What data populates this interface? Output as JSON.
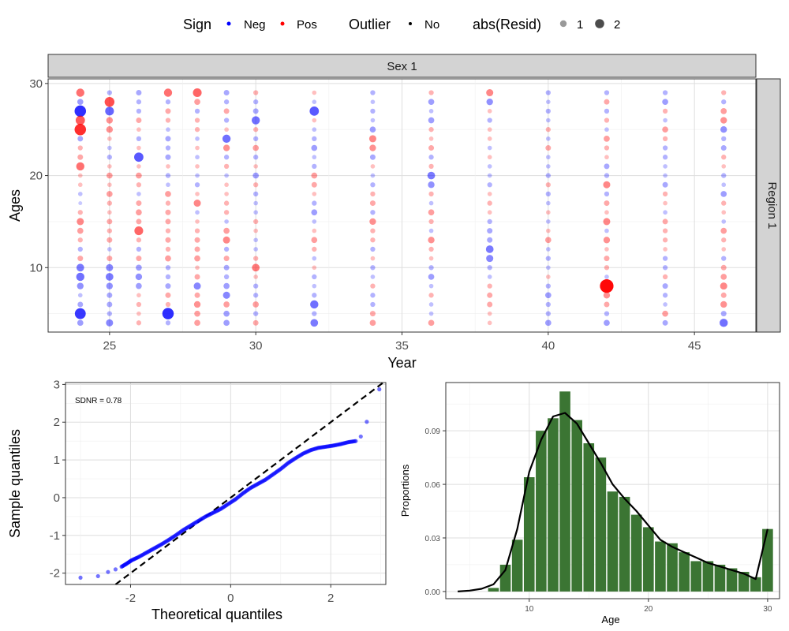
{
  "legend": {
    "sign_title": "Sign",
    "sign_neg": "Neg",
    "sign_pos": "Pos",
    "outlier_title": "Outlier",
    "outlier_no": "No",
    "resid_title": "abs(Resid)",
    "resid_small": "1",
    "resid_large": "2"
  },
  "colors": {
    "neg": "#0000ff",
    "pos": "#ff0000",
    "bar": "#3b7533",
    "strip": "#d3d3d3"
  },
  "chart_data": [
    {
      "type": "scatter",
      "strip_top": "Sex 1",
      "strip_right": "Region 1",
      "xlabel": "Year",
      "ylabel": "Ages",
      "xlim": [
        22.9,
        47.1
      ],
      "ylim": [
        3,
        30.5
      ],
      "xticks": [
        25,
        30,
        35,
        40,
        45
      ],
      "yticks": [
        10,
        20,
        30
      ],
      "x": [
        24,
        25,
        26,
        27,
        28,
        29,
        30,
        32,
        34,
        36,
        38,
        40,
        42,
        44,
        46
      ],
      "ages": [
        29,
        28,
        27,
        26,
        25,
        24,
        23,
        22,
        21,
        20,
        19,
        18,
        17,
        16,
        15,
        14,
        13,
        12,
        11,
        10,
        9,
        8,
        7,
        6,
        5,
        4
      ],
      "residuals": [
        [
          1.0,
          -0.6,
          -1.6,
          1.2,
          1.6,
          -0.5,
          0.4,
          0.5,
          1.0,
          0.3,
          0.3,
          -0.3,
          -0.2,
          0.4,
          0.8,
          0.6,
          0.4,
          -0.4,
          0.5,
          -0.9,
          -1.0,
          -0.7,
          -0.3,
          -0.5,
          -1.5,
          -0.6
        ],
        [
          -0.4,
          1.3,
          -1.1,
          0.7,
          0.7,
          0.3,
          -0.3,
          -0.4,
          0.3,
          0.6,
          0.3,
          0.6,
          0.4,
          0.3,
          0.5,
          0.4,
          0.5,
          -0.3,
          0.5,
          -0.8,
          -0.9,
          -0.7,
          -0.5,
          -0.5,
          -0.4,
          -0.8
        ],
        [
          -0.5,
          -0.4,
          -0.4,
          0.5,
          0.3,
          -0.4,
          0.3,
          -1.2,
          0.3,
          0.6,
          0.4,
          -0.3,
          0.5,
          0.6,
          0.5,
          1.1,
          0.4,
          -0.4,
          0.5,
          -0.6,
          -0.7,
          -0.6,
          0.3,
          0.4,
          0.3,
          0.4
        ],
        [
          1.0,
          -0.4,
          0.5,
          0.4,
          -0.3,
          -0.5,
          -0.4,
          -0.5,
          0.3,
          -0.4,
          -0.3,
          0.6,
          0.4,
          0.5,
          0.5,
          0.4,
          0.5,
          0.4,
          0.6,
          -0.4,
          -0.4,
          -0.5,
          0.5,
          0.4,
          -1.6,
          -0.4
        ],
        [
          1.1,
          0.6,
          -0.4,
          0.4,
          0.4,
          -0.3,
          0.3,
          -0.3,
          0.3,
          -0.3,
          -0.4,
          0.3,
          0.8,
          -0.3,
          0.3,
          0.4,
          0.5,
          0.5,
          0.6,
          0.3,
          0.5,
          -0.8,
          0.5,
          0.7,
          0.6,
          0.6
        ],
        [
          -0.5,
          -0.4,
          0.5,
          -0.4,
          0.3,
          -1.0,
          0.7,
          -0.4,
          0.4,
          -0.3,
          0.3,
          0.3,
          0.4,
          0.4,
          -0.3,
          0.6,
          0.8,
          -0.4,
          0.5,
          -0.5,
          -0.4,
          -0.6,
          -0.8,
          0.6,
          -0.6,
          -0.6
        ],
        [
          0.4,
          -0.4,
          -0.5,
          -1.0,
          0.4,
          -0.4,
          0.6,
          -0.4,
          0.3,
          -0.6,
          0.4,
          -0.4,
          -0.3,
          -0.3,
          0.4,
          0.3,
          -0.3,
          -0.3,
          0.4,
          0.9,
          0.3,
          -0.4,
          -0.4,
          0.6,
          -0.4,
          0.5
        ],
        [
          0.3,
          -0.3,
          -1.2,
          0.3,
          -0.3,
          -0.4,
          -0.6,
          -0.3,
          -0.4,
          0.6,
          0.5,
          0.3,
          -0.4,
          -0.6,
          -0.3,
          0.3,
          0.6,
          0.4,
          -0.3,
          0.3,
          -0.4,
          -0.3,
          -0.4,
          -1.0,
          -0.4,
          -0.9
        ],
        [
          -0.4,
          -0.3,
          -0.4,
          -0.3,
          -0.6,
          0.8,
          0.7,
          -0.5,
          0.3,
          -0.3,
          -0.4,
          0.4,
          0.5,
          -0.4,
          0.7,
          0.4,
          0.4,
          -0.4,
          0.3,
          -0.4,
          -0.3,
          0.4,
          -0.4,
          -0.4,
          0.5,
          0.6
        ],
        [
          0.4,
          -0.6,
          -0.3,
          -0.6,
          0.4,
          0.3,
          0.5,
          -0.4,
          0.4,
          -0.9,
          -0.7,
          0.4,
          -0.3,
          0.6,
          0.4,
          -0.3,
          0.7,
          0.4,
          0.3,
          -0.4,
          -0.6,
          -0.3,
          0.4,
          -0.3,
          -0.3,
          0.6
        ],
        [
          0.8,
          -0.7,
          0.3,
          -0.4,
          0.3,
          0.3,
          -0.3,
          0.3,
          -0.3,
          -0.3,
          -0.4,
          0.3,
          0.4,
          0.3,
          -0.4,
          -0.5,
          -0.5,
          -0.9,
          -0.8,
          -0.4,
          -0.3,
          0.4,
          0.5,
          0.5,
          0.3,
          0.3
        ],
        [
          -0.4,
          -0.3,
          -0.4,
          -0.3,
          0.4,
          -0.3,
          0.5,
          -0.3,
          -0.3,
          -0.4,
          0.4,
          -0.4,
          -0.3,
          0.3,
          -0.3,
          0.3,
          0.6,
          -0.3,
          -0.4,
          -0.3,
          0.3,
          -0.4,
          -0.6,
          -0.4,
          -0.4,
          -0.6
        ],
        [
          -0.4,
          0.5,
          -0.4,
          0.4,
          -0.3,
          0.6,
          0.4,
          0.3,
          -0.5,
          -0.4,
          0.8,
          -0.4,
          0.5,
          0.3,
          0.8,
          -0.3,
          0.7,
          0.3,
          0.5,
          0.4,
          -0.3,
          2.0,
          0.7,
          0.5,
          -0.4,
          -0.6
        ],
        [
          -0.4,
          -0.6,
          0.4,
          -0.3,
          0.6,
          0.4,
          -0.4,
          -0.4,
          -0.3,
          -0.3,
          -0.5,
          0.4,
          0.3,
          -0.3,
          0.5,
          0.4,
          0.4,
          0.3,
          -0.4,
          -0.4,
          0.4,
          -0.5,
          -0.4,
          -0.3,
          0.6,
          -0.5
        ],
        [
          0.4,
          -0.4,
          0.6,
          0.7,
          -0.7,
          -0.4,
          -0.5,
          0.4,
          0.3,
          -0.4,
          -0.3,
          -0.6,
          0.4,
          0.3,
          -0.3,
          0.6,
          0.4,
          0.3,
          -0.4,
          0.5,
          0.6,
          0.8,
          0.5,
          0.7,
          -0.5,
          -1.0
        ]
      ]
    },
    {
      "type": "scatter",
      "title": "SDNR = 0.78",
      "xlabel": "Theoretical quantiles",
      "ylabel": "Sample quantiles",
      "xlim": [
        -3.3,
        3.1
      ],
      "ylim": [
        -2.3,
        3.05
      ],
      "xticks": [
        -2,
        0,
        2
      ],
      "yticks": [
        -2,
        -1,
        0,
        1,
        2,
        3
      ],
      "points": [
        [
          -3.0,
          -2.12
        ],
        [
          -2.65,
          -2.08
        ],
        [
          -2.45,
          -1.97
        ],
        [
          -2.3,
          -1.9
        ],
        [
          -2.18,
          -1.83
        ],
        [
          -2.08,
          -1.75
        ],
        [
          -1.98,
          -1.66
        ],
        [
          -1.85,
          -1.58
        ],
        [
          -1.7,
          -1.47
        ],
        [
          -1.55,
          -1.36
        ],
        [
          -1.4,
          -1.25
        ],
        [
          -1.25,
          -1.13
        ],
        [
          -1.1,
          -1.0
        ],
        [
          -0.95,
          -0.86
        ],
        [
          -0.8,
          -0.74
        ],
        [
          -0.65,
          -0.62
        ],
        [
          -0.5,
          -0.5
        ],
        [
          -0.35,
          -0.4
        ],
        [
          -0.2,
          -0.3
        ],
        [
          -0.05,
          -0.17
        ],
        [
          0.1,
          -0.04
        ],
        [
          0.25,
          0.12
        ],
        [
          0.4,
          0.26
        ],
        [
          0.55,
          0.37
        ],
        [
          0.7,
          0.48
        ],
        [
          0.85,
          0.62
        ],
        [
          1.0,
          0.76
        ],
        [
          1.15,
          0.92
        ],
        [
          1.3,
          1.05
        ],
        [
          1.45,
          1.17
        ],
        [
          1.6,
          1.26
        ],
        [
          1.75,
          1.32
        ],
        [
          1.9,
          1.35
        ],
        [
          2.05,
          1.38
        ],
        [
          2.2,
          1.42
        ],
        [
          2.35,
          1.47
        ],
        [
          2.5,
          1.5
        ],
        [
          2.6,
          1.62
        ],
        [
          2.72,
          2.01
        ],
        [
          2.97,
          2.87
        ]
      ],
      "reference_line": {
        "slope": 1.0,
        "intercept": 0.0
      }
    },
    {
      "type": "bar",
      "xlabel": "Age",
      "ylabel": "Proportions",
      "xlim": [
        3,
        31
      ],
      "ylim": [
        -0.004,
        0.117
      ],
      "xticks": [
        10,
        20,
        30
      ],
      "yticks": [
        0.0,
        0.03,
        0.06,
        0.09
      ],
      "ytick_labels": [
        "0.00",
        "0.03",
        "0.06",
        "0.09"
      ],
      "categories": [
        4,
        5,
        6,
        7,
        8,
        9,
        10,
        11,
        12,
        13,
        14,
        15,
        16,
        17,
        18,
        19,
        20,
        21,
        22,
        23,
        24,
        25,
        26,
        27,
        28,
        29,
        30
      ],
      "values": [
        0.0,
        0.0,
        0.0,
        0.002,
        0.015,
        0.029,
        0.064,
        0.09,
        0.097,
        0.112,
        0.096,
        0.083,
        0.075,
        0.056,
        0.053,
        0.043,
        0.036,
        0.028,
        0.027,
        0.022,
        0.017,
        0.017,
        0.015,
        0.013,
        0.011,
        0.008,
        0.035
      ],
      "fit_line": [
        0.0,
        0.0005,
        0.0015,
        0.004,
        0.012,
        0.035,
        0.067,
        0.085,
        0.098,
        0.1,
        0.094,
        0.083,
        0.072,
        0.06,
        0.052,
        0.045,
        0.037,
        0.029,
        0.025,
        0.022,
        0.019,
        0.016,
        0.014,
        0.012,
        0.01,
        0.007,
        0.035
      ]
    }
  ]
}
